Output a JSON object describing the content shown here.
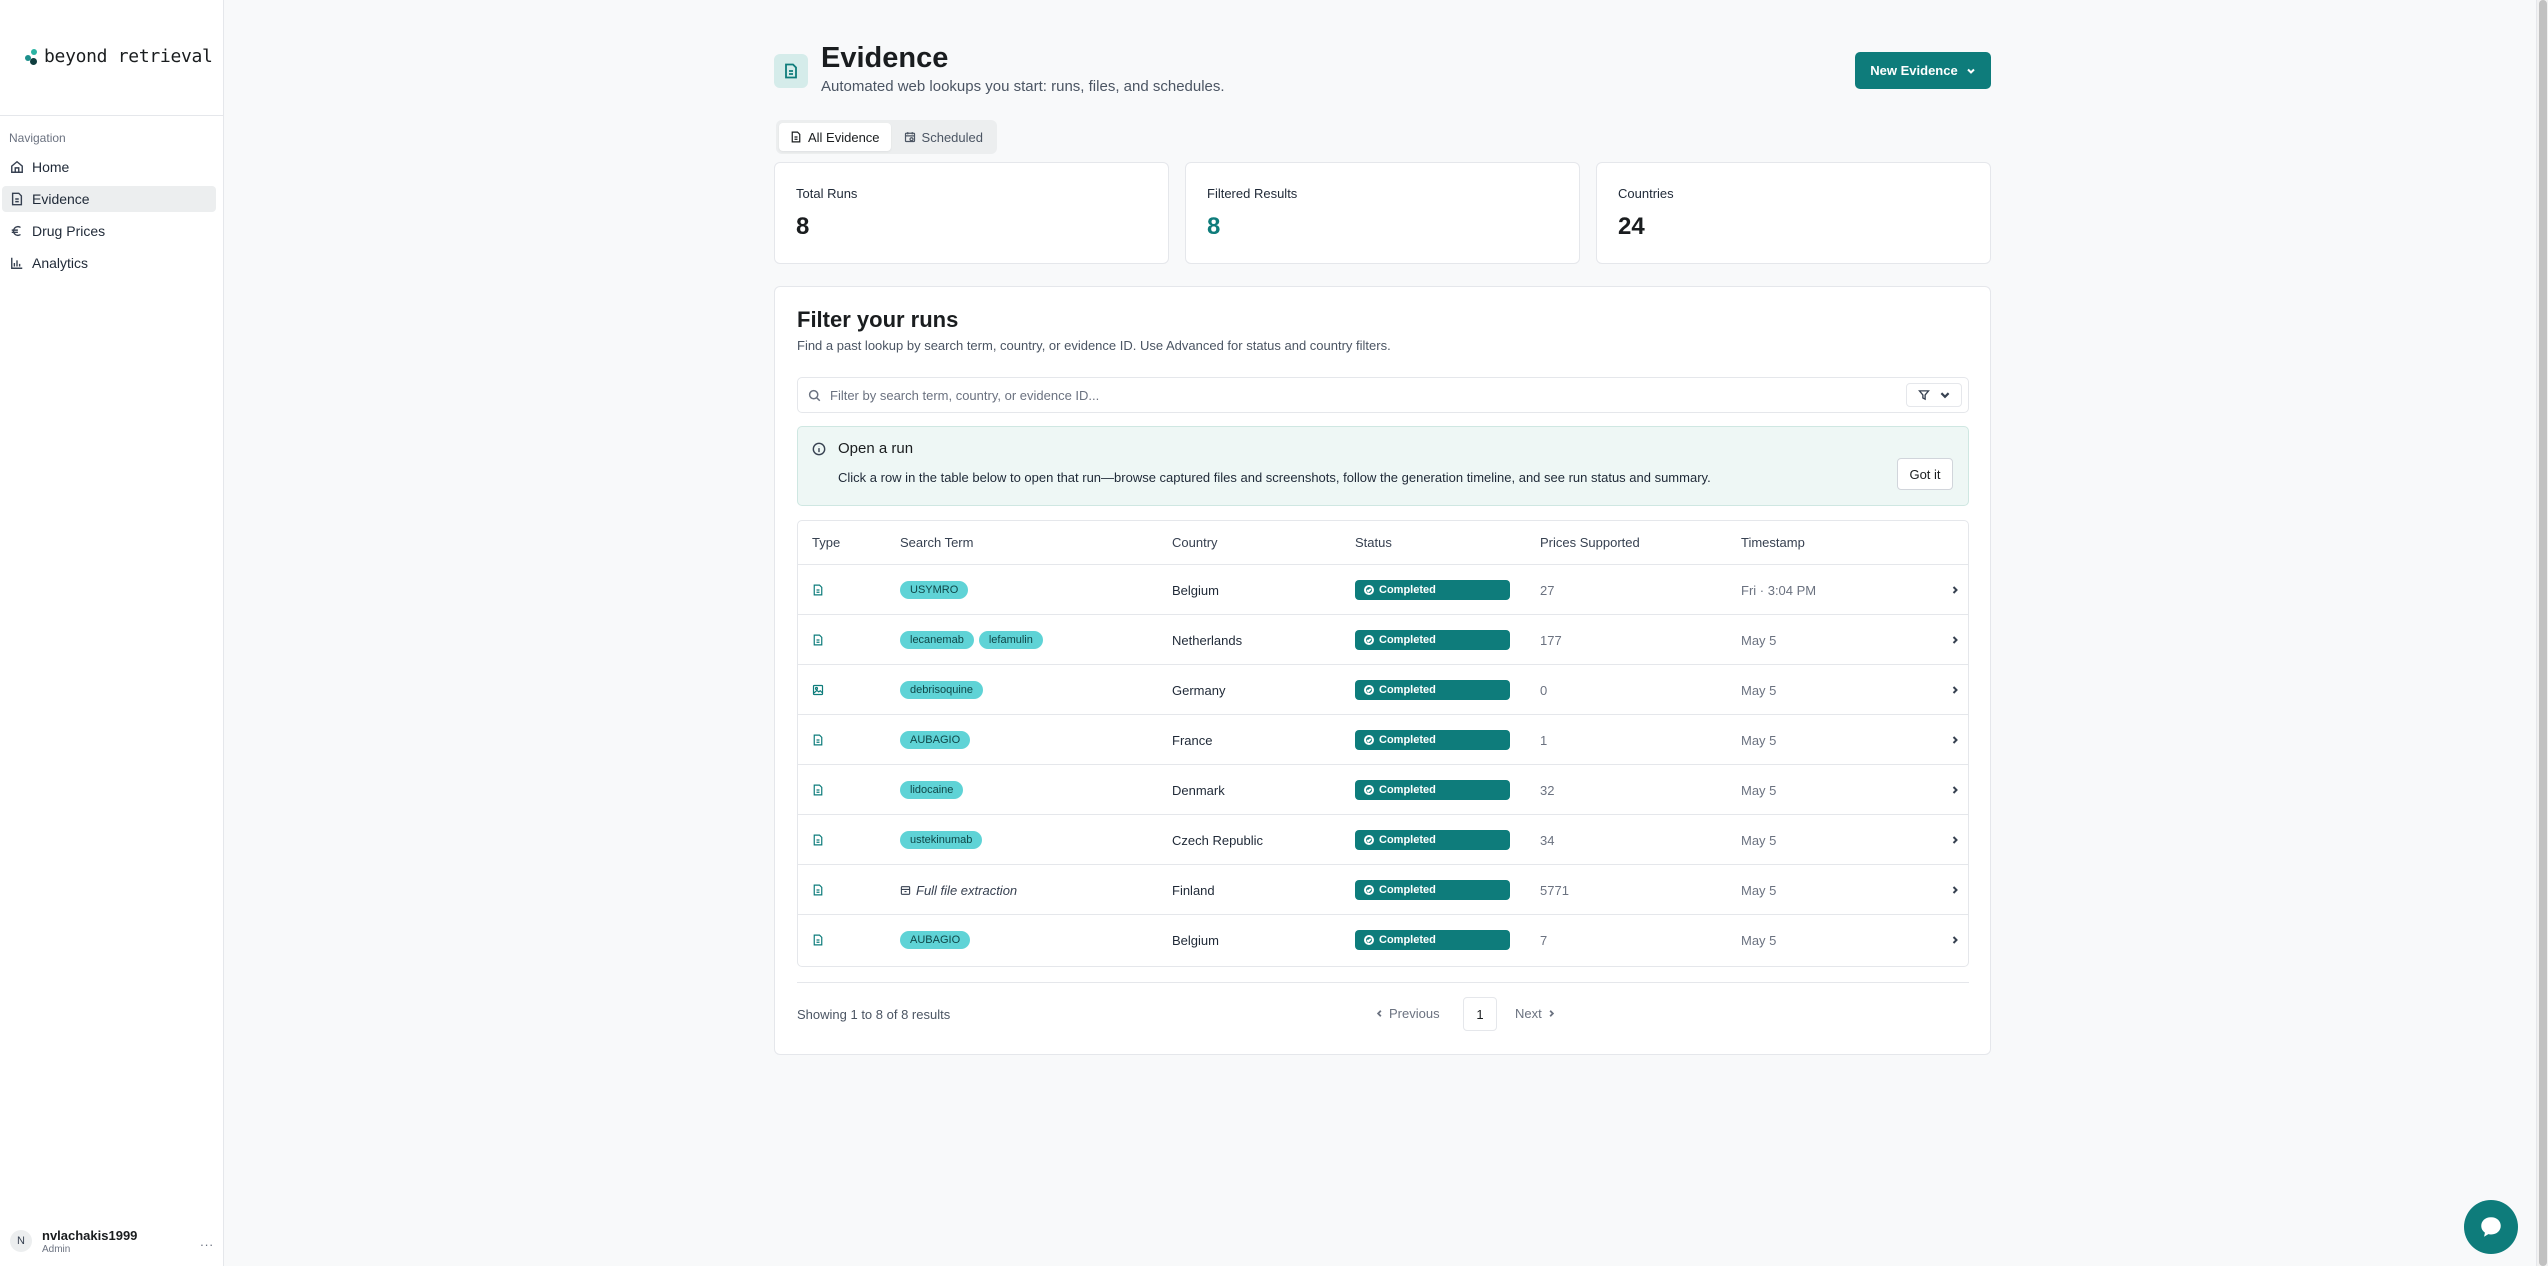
{
  "brand": {
    "name": "beyond retrieval"
  },
  "sidebar": {
    "section_title": "Navigation",
    "items": [
      {
        "label": "Home",
        "icon": "home-icon"
      },
      {
        "label": "Evidence",
        "icon": "document-icon",
        "active": true
      },
      {
        "label": "Drug Prices",
        "icon": "euro-icon"
      },
      {
        "label": "Analytics",
        "icon": "bar-chart-icon"
      }
    ],
    "user": {
      "initial": "N",
      "name": "nvlachakis1999",
      "role": "Admin",
      "more": "..."
    }
  },
  "header": {
    "title": "Evidence",
    "subtitle": "Automated web lookups you start: runs, files, and schedules.",
    "new_button": "New Evidence"
  },
  "tabs": [
    {
      "label": "All Evidence",
      "active": true
    },
    {
      "label": "Scheduled",
      "active": false
    }
  ],
  "stats": [
    {
      "label": "Total Runs",
      "value": "8"
    },
    {
      "label": "Filtered Results",
      "value": "8"
    },
    {
      "label": "Countries",
      "value": "24"
    }
  ],
  "filter": {
    "title": "Filter your runs",
    "description": "Find a past lookup by search term, country, or evidence ID. Use Advanced for status and country filters.",
    "search_placeholder": "Filter by search term, country, or evidence ID...",
    "search_value": ""
  },
  "notice": {
    "title": "Open a run",
    "text": "Click a row in the table below to open that run—browse captured files and screenshots, follow the generation timeline, and see run status and summary.",
    "button": "Got it"
  },
  "table": {
    "columns": [
      "Type",
      "Search Term",
      "Country",
      "Status",
      "Prices Supported",
      "Timestamp"
    ],
    "rows": [
      {
        "type": "document",
        "terms": [
          "USYMRO"
        ],
        "country": "Belgium",
        "status": "Completed",
        "prices": "27",
        "timestamp": "Fri · 3:04 PM"
      },
      {
        "type": "document",
        "terms": [
          "lecanemab",
          "lefamulin"
        ],
        "country": "Netherlands",
        "status": "Completed",
        "prices": "177",
        "timestamp": "May 5"
      },
      {
        "type": "image",
        "terms": [
          "debrisoquine"
        ],
        "country": "Germany",
        "status": "Completed",
        "prices": "0",
        "timestamp": "May 5"
      },
      {
        "type": "document",
        "terms": [
          "AUBAGIO"
        ],
        "country": "France",
        "status": "Completed",
        "prices": "1",
        "timestamp": "May 5"
      },
      {
        "type": "document",
        "terms": [
          "lidocaine"
        ],
        "country": "Denmark",
        "status": "Completed",
        "prices": "32",
        "timestamp": "May 5"
      },
      {
        "type": "document",
        "terms": [
          "ustekinumab"
        ],
        "country": "Czech Republic",
        "status": "Completed",
        "prices": "34",
        "timestamp": "May 5"
      },
      {
        "type": "document",
        "terms": [],
        "full_file": "Full file extraction",
        "country": "Finland",
        "status": "Completed",
        "prices": "5771",
        "timestamp": "May 5"
      },
      {
        "type": "document",
        "terms": [
          "AUBAGIO"
        ],
        "country": "Belgium",
        "status": "Completed",
        "prices": "7",
        "timestamp": "May 5"
      }
    ]
  },
  "pagination": {
    "summary": "Showing 1 to 8 of 8 results",
    "previous": "Previous",
    "page": "1",
    "next": "Next"
  },
  "colors": {
    "accent": "#0e7c7b",
    "pill": "#5fd3d6"
  }
}
